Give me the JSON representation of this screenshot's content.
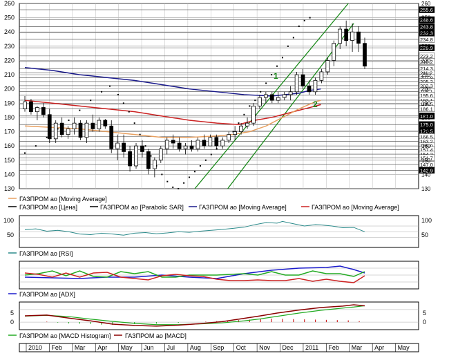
{
  "price_axis": {
    "ticks": [
      130,
      140,
      150,
      160,
      170,
      180,
      190,
      200,
      210,
      220,
      230,
      240,
      250,
      260
    ],
    "range": [
      130,
      260
    ],
    "label_values": [
      "255.6",
      "248.6",
      "243.8",
      "239.3",
      "234.8",
      "228.9",
      "223.2",
      "219.2",
      "214.3",
      "211.2",
      "207.9",
      "205.2",
      "202.3",
      "198.1",
      "195.6",
      "192.1",
      "189.5",
      "186.1",
      "181.0",
      "175.0",
      "170.5",
      "166.5",
      "163.2",
      "160.0",
      "157.4",
      "154.2",
      "151.7",
      "147.0",
      "142.9"
    ]
  },
  "annotations": {
    "line1": "1",
    "line2": "2"
  },
  "legend": {
    "ma_small": "ГАЗПРОМ ао [Moving Average]",
    "price": "ГАЗПРОМ ао [Цена]",
    "sar": "ГАЗПРОМ ао [Parabolic SAR]",
    "ma_blue": "ГАЗПРОМ ао [Moving Average]",
    "ma_red": "ГАЗПРОМ ао [Moving Average]",
    "rsi": "ГАЗПРОМ ао [RSI]",
    "adx": "ГАЗПРОМ ао [ADX]",
    "macd_hist": "ГАЗПРОМ ао [MACD Histogram]",
    "macd": "ГАЗПРОМ ао [MACD]"
  },
  "rsi_axis": {
    "ticks": [
      "100",
      "50"
    ]
  },
  "macd_axis": {
    "ticks": [
      "5",
      "0"
    ]
  },
  "x_axis": {
    "labels": [
      "2010",
      "Feb",
      "Mar",
      "Apr",
      "May",
      "Jun",
      "Jul",
      "Aug",
      "Sep",
      "Oct",
      "Nov",
      "Dec",
      "2011",
      "Feb",
      "Mar",
      "Apr",
      "May"
    ]
  },
  "colors": {
    "candle": "#000000",
    "ma_short": "#e8a060",
    "ma_blue": "#1a1a8c",
    "ma_red": "#cc2222",
    "channel": "#1a8a1a",
    "sar": "#000000",
    "rsi": "#2a8a8a",
    "adx": "#1a1acc",
    "di_plus": "#22aa22",
    "di_minus": "#cc2222",
    "macd": "#8b0000",
    "macd_signal": "#22aa22",
    "hist": "#cc2222"
  },
  "chart_data": {
    "type": "candlestick",
    "x": [
      "2010",
      "Feb",
      "Mar",
      "Apr",
      "May",
      "Jun",
      "Jul",
      "Aug",
      "Sep",
      "Oct",
      "Nov",
      "Dec",
      "2011",
      "Feb",
      "Mar",
      "Apr",
      "May"
    ],
    "candles": [
      [
        186,
        195,
        184,
        191
      ],
      [
        191,
        193,
        182,
        184
      ],
      [
        184,
        188,
        178,
        187
      ],
      [
        187,
        190,
        180,
        182
      ],
      [
        182,
        186,
        162,
        165
      ],
      [
        165,
        178,
        162,
        176
      ],
      [
        176,
        180,
        166,
        168
      ],
      [
        168,
        174,
        165,
        172
      ],
      [
        172,
        180,
        168,
        176
      ],
      [
        176,
        178,
        164,
        166
      ],
      [
        166,
        178,
        162,
        176
      ],
      [
        176,
        182,
        170,
        172
      ],
      [
        172,
        180,
        170,
        178
      ],
      [
        178,
        179,
        172,
        174
      ],
      [
        174,
        178,
        155,
        158
      ],
      [
        158,
        168,
        150,
        162
      ],
      [
        162,
        168,
        152,
        156
      ],
      [
        156,
        160,
        142,
        146
      ],
      [
        146,
        162,
        144,
        160
      ],
      [
        160,
        164,
        152,
        156
      ],
      [
        156,
        158,
        140,
        144
      ],
      [
        144,
        152,
        138,
        150
      ],
      [
        150,
        160,
        148,
        158
      ],
      [
        158,
        166,
        154,
        164
      ],
      [
        164,
        168,
        158,
        162
      ],
      [
        162,
        166,
        156,
        158
      ],
      [
        158,
        162,
        154,
        160
      ],
      [
        160,
        164,
        156,
        158
      ],
      [
        158,
        166,
        156,
        164
      ],
      [
        164,
        168,
        158,
        160
      ],
      [
        160,
        168,
        160,
        166
      ],
      [
        166,
        168,
        158,
        160
      ],
      [
        160,
        166,
        158,
        164
      ],
      [
        164,
        170,
        162,
        168
      ],
      [
        168,
        174,
        164,
        170
      ],
      [
        170,
        176,
        168,
        174
      ],
      [
        174,
        180,
        172,
        176
      ],
      [
        176,
        190,
        174,
        188
      ],
      [
        188,
        196,
        186,
        194
      ],
      [
        194,
        198,
        190,
        196
      ],
      [
        196,
        198,
        190,
        192
      ],
      [
        192,
        198,
        190,
        194
      ],
      [
        194,
        198,
        192,
        196
      ],
      [
        196,
        202,
        192,
        198
      ],
      [
        198,
        212,
        196,
        210
      ],
      [
        210,
        214,
        200,
        202
      ],
      [
        202,
        206,
        196,
        198
      ],
      [
        198,
        208,
        196,
        206
      ],
      [
        206,
        214,
        204,
        212
      ],
      [
        212,
        222,
        210,
        220
      ],
      [
        220,
        234,
        216,
        232
      ],
      [
        232,
        244,
        228,
        242
      ],
      [
        242,
        248,
        230,
        234
      ],
      [
        234,
        246,
        226,
        240
      ],
      [
        240,
        244,
        226,
        232
      ],
      [
        232,
        236,
        214,
        216
      ]
    ],
    "sar": [
      [
        0,
        155
      ],
      [
        4,
        160
      ],
      [
        8,
        166
      ],
      [
        12,
        172
      ],
      [
        16,
        178
      ],
      [
        20,
        185
      ],
      [
        24,
        192
      ],
      [
        28,
        198
      ],
      [
        31,
        202
      ],
      [
        34,
        196
      ],
      [
        36,
        190
      ],
      [
        38,
        184
      ],
      [
        40,
        176
      ],
      [
        42,
        168
      ],
      [
        44,
        160
      ],
      [
        46,
        153
      ],
      [
        48,
        146
      ],
      [
        50,
        140
      ],
      [
        52,
        135
      ],
      [
        54,
        131
      ],
      [
        56,
        130
      ],
      [
        58,
        134
      ],
      [
        60,
        138
      ],
      [
        62,
        142
      ],
      [
        64,
        146
      ],
      [
        66,
        150
      ],
      [
        68,
        154
      ],
      [
        70,
        158
      ],
      [
        72,
        162
      ],
      [
        74,
        166
      ],
      [
        76,
        170
      ],
      [
        78,
        176
      ],
      [
        80,
        182
      ],
      [
        82,
        188
      ],
      [
        84,
        192
      ],
      [
        86,
        198
      ],
      [
        88,
        204
      ],
      [
        90,
        210
      ],
      [
        92,
        216
      ],
      [
        94,
        222
      ],
      [
        96,
        230
      ],
      [
        98,
        236
      ],
      [
        100,
        244
      ],
      [
        102,
        248
      ],
      [
        104,
        250
      ]
    ],
    "ma_blue": [
      [
        0,
        215
      ],
      [
        10,
        213
      ],
      [
        20,
        210
      ],
      [
        30,
        208
      ],
      [
        40,
        206
      ],
      [
        50,
        203
      ],
      [
        60,
        200
      ],
      [
        70,
        198
      ],
      [
        80,
        196
      ],
      [
        90,
        195
      ],
      [
        100,
        197
      ],
      [
        104,
        199
      ],
      [
        108,
        200
      ]
    ],
    "ma_red": [
      [
        0,
        192
      ],
      [
        10,
        190
      ],
      [
        20,
        188
      ],
      [
        30,
        186
      ],
      [
        40,
        184
      ],
      [
        50,
        181
      ],
      [
        60,
        178
      ],
      [
        70,
        176
      ],
      [
        78,
        175
      ],
      [
        84,
        178
      ],
      [
        90,
        180
      ],
      [
        96,
        183
      ],
      [
        102,
        186
      ],
      [
        108,
        189
      ]
    ],
    "ma_short": [
      [
        0,
        174
      ],
      [
        10,
        173
      ],
      [
        20,
        172
      ],
      [
        30,
        170
      ],
      [
        40,
        168
      ],
      [
        50,
        166
      ],
      [
        60,
        166
      ],
      [
        70,
        167
      ],
      [
        76,
        168
      ],
      [
        82,
        170
      ],
      [
        88,
        174
      ],
      [
        94,
        180
      ],
      [
        100,
        186
      ],
      [
        106,
        191
      ],
      [
        108,
        192
      ]
    ],
    "channel_upper": [
      [
        62,
        130
      ],
      [
        118,
        260
      ]
    ],
    "channel_lower": [
      [
        74,
        130
      ],
      [
        120,
        246
      ]
    ],
    "rsi": [
      [
        0,
        57
      ],
      [
        4,
        60
      ],
      [
        8,
        52
      ],
      [
        12,
        55
      ],
      [
        16,
        50
      ],
      [
        20,
        42
      ],
      [
        24,
        40
      ],
      [
        28,
        45
      ],
      [
        32,
        42
      ],
      [
        36,
        38
      ],
      [
        40,
        45
      ],
      [
        44,
        47
      ],
      [
        48,
        43
      ],
      [
        52,
        46
      ],
      [
        56,
        50
      ],
      [
        60,
        48
      ],
      [
        64,
        52
      ],
      [
        68,
        55
      ],
      [
        72,
        58
      ],
      [
        76,
        62
      ],
      [
        80,
        66
      ],
      [
        84,
        75
      ],
      [
        88,
        82
      ],
      [
        92,
        80
      ],
      [
        94,
        86
      ],
      [
        98,
        78
      ],
      [
        102,
        70
      ],
      [
        106,
        75
      ],
      [
        108,
        74
      ],
      [
        112,
        70
      ],
      [
        116,
        64
      ],
      [
        120,
        65
      ],
      [
        124,
        50
      ]
    ],
    "adx": [
      [
        0,
        22
      ],
      [
        10,
        21
      ],
      [
        20,
        20
      ],
      [
        30,
        22
      ],
      [
        40,
        22
      ],
      [
        50,
        25
      ],
      [
        60,
        22
      ],
      [
        70,
        20
      ],
      [
        80,
        27
      ],
      [
        90,
        32
      ],
      [
        100,
        35
      ],
      [
        110,
        36
      ],
      [
        115,
        38
      ],
      [
        120,
        33
      ],
      [
        124,
        28
      ]
    ],
    "di_plus": [
      [
        0,
        25
      ],
      [
        5,
        27
      ],
      [
        10,
        31
      ],
      [
        15,
        24
      ],
      [
        20,
        31
      ],
      [
        25,
        23
      ],
      [
        30,
        22
      ],
      [
        35,
        30
      ],
      [
        40,
        27
      ],
      [
        45,
        30
      ],
      [
        50,
        22
      ],
      [
        55,
        22
      ],
      [
        60,
        25
      ],
      [
        65,
        25
      ],
      [
        70,
        25
      ],
      [
        75,
        26
      ],
      [
        80,
        27
      ],
      [
        85,
        25
      ],
      [
        90,
        30
      ],
      [
        95,
        25
      ],
      [
        100,
        25
      ],
      [
        105,
        31
      ],
      [
        110,
        27
      ],
      [
        115,
        27
      ],
      [
        120,
        23
      ],
      [
        124,
        30
      ]
    ],
    "di_minus": [
      [
        0,
        28
      ],
      [
        5,
        26
      ],
      [
        10,
        22
      ],
      [
        15,
        28
      ],
      [
        20,
        22
      ],
      [
        25,
        28
      ],
      [
        30,
        29
      ],
      [
        35,
        22
      ],
      [
        40,
        20
      ],
      [
        45,
        18
      ],
      [
        50,
        24
      ],
      [
        55,
        26
      ],
      [
        60,
        24
      ],
      [
        65,
        23
      ],
      [
        70,
        19
      ],
      [
        75,
        17
      ],
      [
        80,
        17
      ],
      [
        85,
        18
      ],
      [
        90,
        17
      ],
      [
        95,
        17
      ],
      [
        100,
        20
      ],
      [
        105,
        16
      ],
      [
        110,
        19
      ],
      [
        115,
        16
      ],
      [
        120,
        14
      ],
      [
        124,
        24
      ]
    ],
    "macd": [
      [
        0,
        2.5
      ],
      [
        8,
        2.8
      ],
      [
        16,
        1.6
      ],
      [
        24,
        0.5
      ],
      [
        32,
        -0.8
      ],
      [
        40,
        -1.3
      ],
      [
        48,
        -1.6
      ],
      [
        56,
        -1.2
      ],
      [
        64,
        -0.6
      ],
      [
        72,
        0.2
      ],
      [
        80,
        1.5
      ],
      [
        86,
        2.5
      ],
      [
        92,
        3.6
      ],
      [
        100,
        4.8
      ],
      [
        108,
        5.8
      ],
      [
        116,
        6.4
      ],
      [
        120,
        6.9
      ],
      [
        124,
        6.5
      ]
    ],
    "macd_signal": [
      [
        0,
        2.4
      ],
      [
        8,
        2.7
      ],
      [
        16,
        2.2
      ],
      [
        24,
        1.2
      ],
      [
        32,
        0.3
      ],
      [
        40,
        -0.5
      ],
      [
        48,
        -1.0
      ],
      [
        56,
        -1.0
      ],
      [
        64,
        -0.7
      ],
      [
        72,
        -0.3
      ],
      [
        80,
        0.5
      ],
      [
        86,
        1.3
      ],
      [
        92,
        2.3
      ],
      [
        100,
        3.6
      ],
      [
        108,
        4.7
      ],
      [
        116,
        5.6
      ],
      [
        120,
        6.0
      ],
      [
        124,
        6.5
      ]
    ],
    "macd_hist": [
      [
        8,
        0.2
      ],
      [
        12,
        -0.2
      ],
      [
        16,
        -0.5
      ],
      [
        20,
        -0.6
      ],
      [
        24,
        -0.7
      ],
      [
        28,
        -1.0
      ],
      [
        32,
        -1.1
      ],
      [
        40,
        -0.8
      ],
      [
        48,
        -0.6
      ],
      [
        56,
        -0.3
      ],
      [
        66,
        0.2
      ],
      [
        70,
        0.4
      ],
      [
        74,
        0.6
      ],
      [
        78,
        0.8
      ],
      [
        82,
        1.0
      ],
      [
        86,
        1.2
      ],
      [
        90,
        1.4
      ],
      [
        94,
        1.3
      ],
      [
        98,
        1.2
      ],
      [
        102,
        1.1
      ],
      [
        106,
        1.0
      ],
      [
        110,
        0.9
      ],
      [
        114,
        0.8
      ],
      [
        118,
        0.7
      ],
      [
        122,
        0.4
      ]
    ]
  }
}
